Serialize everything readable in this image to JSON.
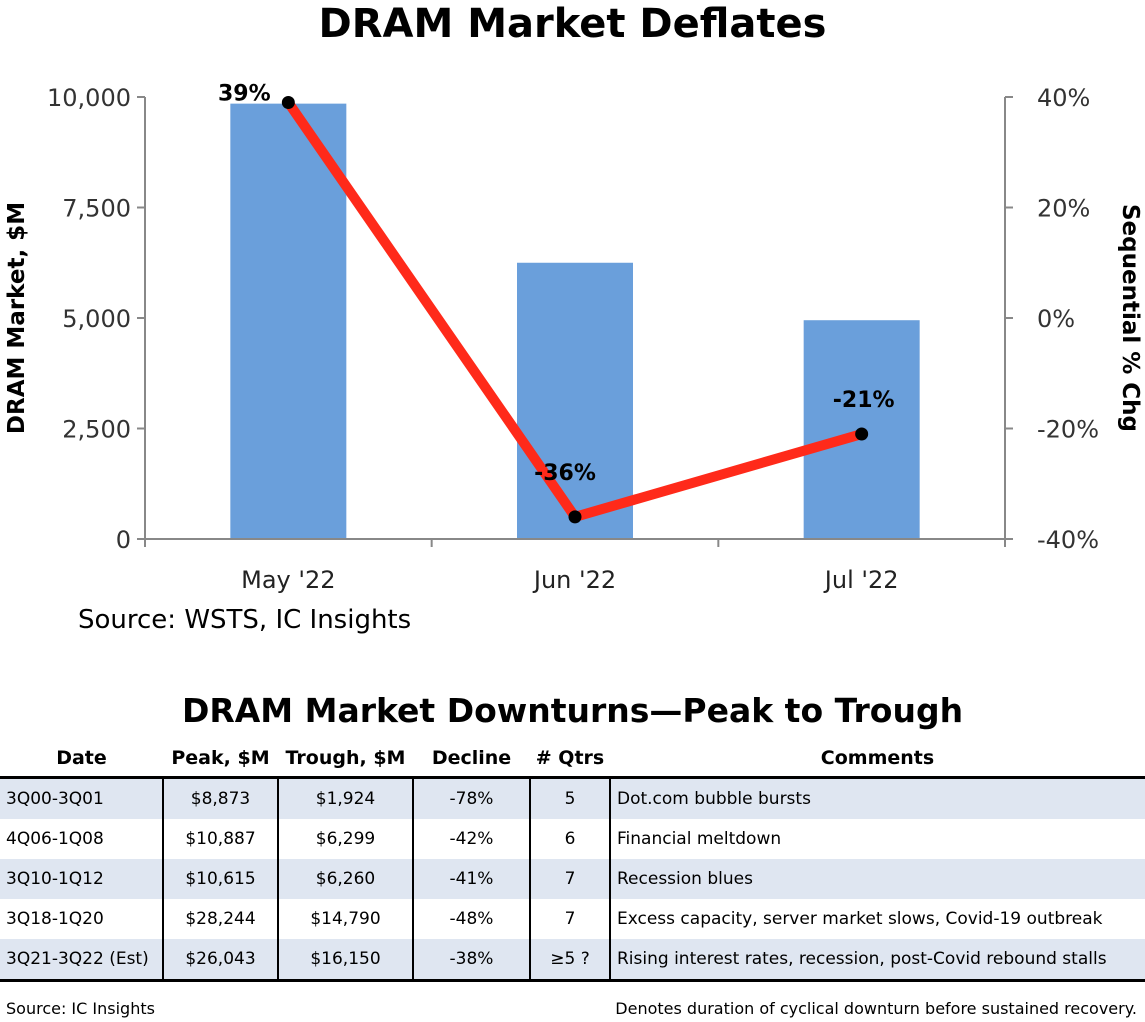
{
  "chart_data": {
    "type": "bar+line",
    "title": "DRAM Market Deflates",
    "categories": [
      "May '22",
      "Jun '22",
      "Jul '22"
    ],
    "series": [
      {
        "name": "",
        "type": "bar",
        "axis": "left",
        "values": [
          9850,
          6250,
          4950
        ],
        "color": "#6a9fdb"
      },
      {
        "name": "",
        "type": "line",
        "axis": "right",
        "values": [
          39,
          -36,
          -21
        ],
        "labels": [
          "39%",
          "-36%",
          "-21%"
        ],
        "color": "#ff2a1a"
      }
    ],
    "ylabel": "DRAM Market, $M",
    "ylim": [
      0,
      10000
    ],
    "yticks": [
      "10,000",
      "7,500",
      "5,000",
      "2,500",
      "0"
    ],
    "y2label": "Sequential % Chg",
    "y2lim": [
      -40,
      40
    ],
    "y2ticks": [
      "40%",
      "20%",
      "0%",
      "-20%",
      "-40%"
    ],
    "grid": false,
    "source": "Source:  WSTS, IC Insights"
  },
  "table": {
    "title": "DRAM Market Downturns—Peak to Trough",
    "headers": [
      "Date",
      "Peak, $M",
      "Trough, $M",
      "Decline",
      "# Qtrs",
      "Comments"
    ],
    "rows": [
      [
        "3Q00-3Q01",
        "$8,873",
        "$1,924",
        "-78%",
        "5",
        "Dot.com bubble bursts"
      ],
      [
        "4Q06-1Q08",
        "$10,887",
        "$6,299",
        "-42%",
        "6",
        "Financial meltdown"
      ],
      [
        "3Q10-1Q12",
        "$10,615",
        "$6,260",
        "-41%",
        "7",
        "Recession blues"
      ],
      [
        "3Q18-1Q20",
        "$28,244",
        "$14,790",
        "-48%",
        "7",
        "Excess capacity, server market slows, Covid-19 outbreak"
      ],
      [
        "3Q21-3Q22 (Est)",
        "$26,043",
        "$16,150",
        "-38%",
        "≥5 ?",
        "Rising interest rates, recession, post-Covid rebound stalls"
      ]
    ],
    "source": "Source:  IC Insights",
    "note": "Denotes duration of cyclical downturn before sustained recovery."
  }
}
